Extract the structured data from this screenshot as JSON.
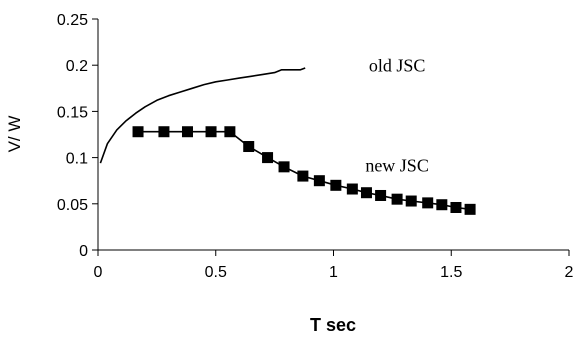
{
  "chart_data": {
    "type": "line",
    "title": "",
    "xlabel": "T sec",
    "ylabel": "V/ W",
    "xlim": [
      0,
      2
    ],
    "ylim": [
      0,
      0.25
    ],
    "xticks": [
      0,
      0.5,
      1,
      1.5,
      2
    ],
    "yticks": [
      0,
      0.05,
      0.1,
      0.15,
      0.2,
      0.25
    ],
    "xtick_labels": [
      "0",
      "0.5",
      "1",
      "1.5",
      "2"
    ],
    "ytick_labels": [
      "0",
      "0.05",
      "0.1",
      "0.15",
      "0.2",
      "0.25"
    ],
    "grid": false,
    "legend": false,
    "series": [
      {
        "name": "old JSC",
        "marker": "none",
        "color": "#000000",
        "x": [
          0.01,
          0.04,
          0.08,
          0.12,
          0.16,
          0.2,
          0.25,
          0.3,
          0.35,
          0.4,
          0.45,
          0.5,
          0.55,
          0.6,
          0.65,
          0.7,
          0.75,
          0.78,
          0.82,
          0.86,
          0.88
        ],
        "y": [
          0.094,
          0.115,
          0.13,
          0.14,
          0.148,
          0.155,
          0.162,
          0.167,
          0.171,
          0.175,
          0.179,
          0.182,
          0.184,
          0.186,
          0.188,
          0.19,
          0.192,
          0.195,
          0.195,
          0.195,
          0.197
        ]
      },
      {
        "name": "new JSC",
        "marker": "square",
        "color": "#000000",
        "x": [
          0.17,
          0.28,
          0.38,
          0.48,
          0.56,
          0.64,
          0.72,
          0.79,
          0.87,
          0.94,
          1.01,
          1.08,
          1.14,
          1.2,
          1.27,
          1.33,
          1.4,
          1.46,
          1.52,
          1.58
        ],
        "y": [
          0.128,
          0.128,
          0.128,
          0.128,
          0.128,
          0.112,
          0.1,
          0.09,
          0.08,
          0.075,
          0.07,
          0.066,
          0.062,
          0.059,
          0.055,
          0.053,
          0.051,
          0.049,
          0.046,
          0.044
        ]
      }
    ],
    "annotations": [
      {
        "text": "old JSC",
        "x": 1.27,
        "y": 0.193
      },
      {
        "text": "new JSC",
        "x": 1.27,
        "y": 0.085
      }
    ]
  }
}
